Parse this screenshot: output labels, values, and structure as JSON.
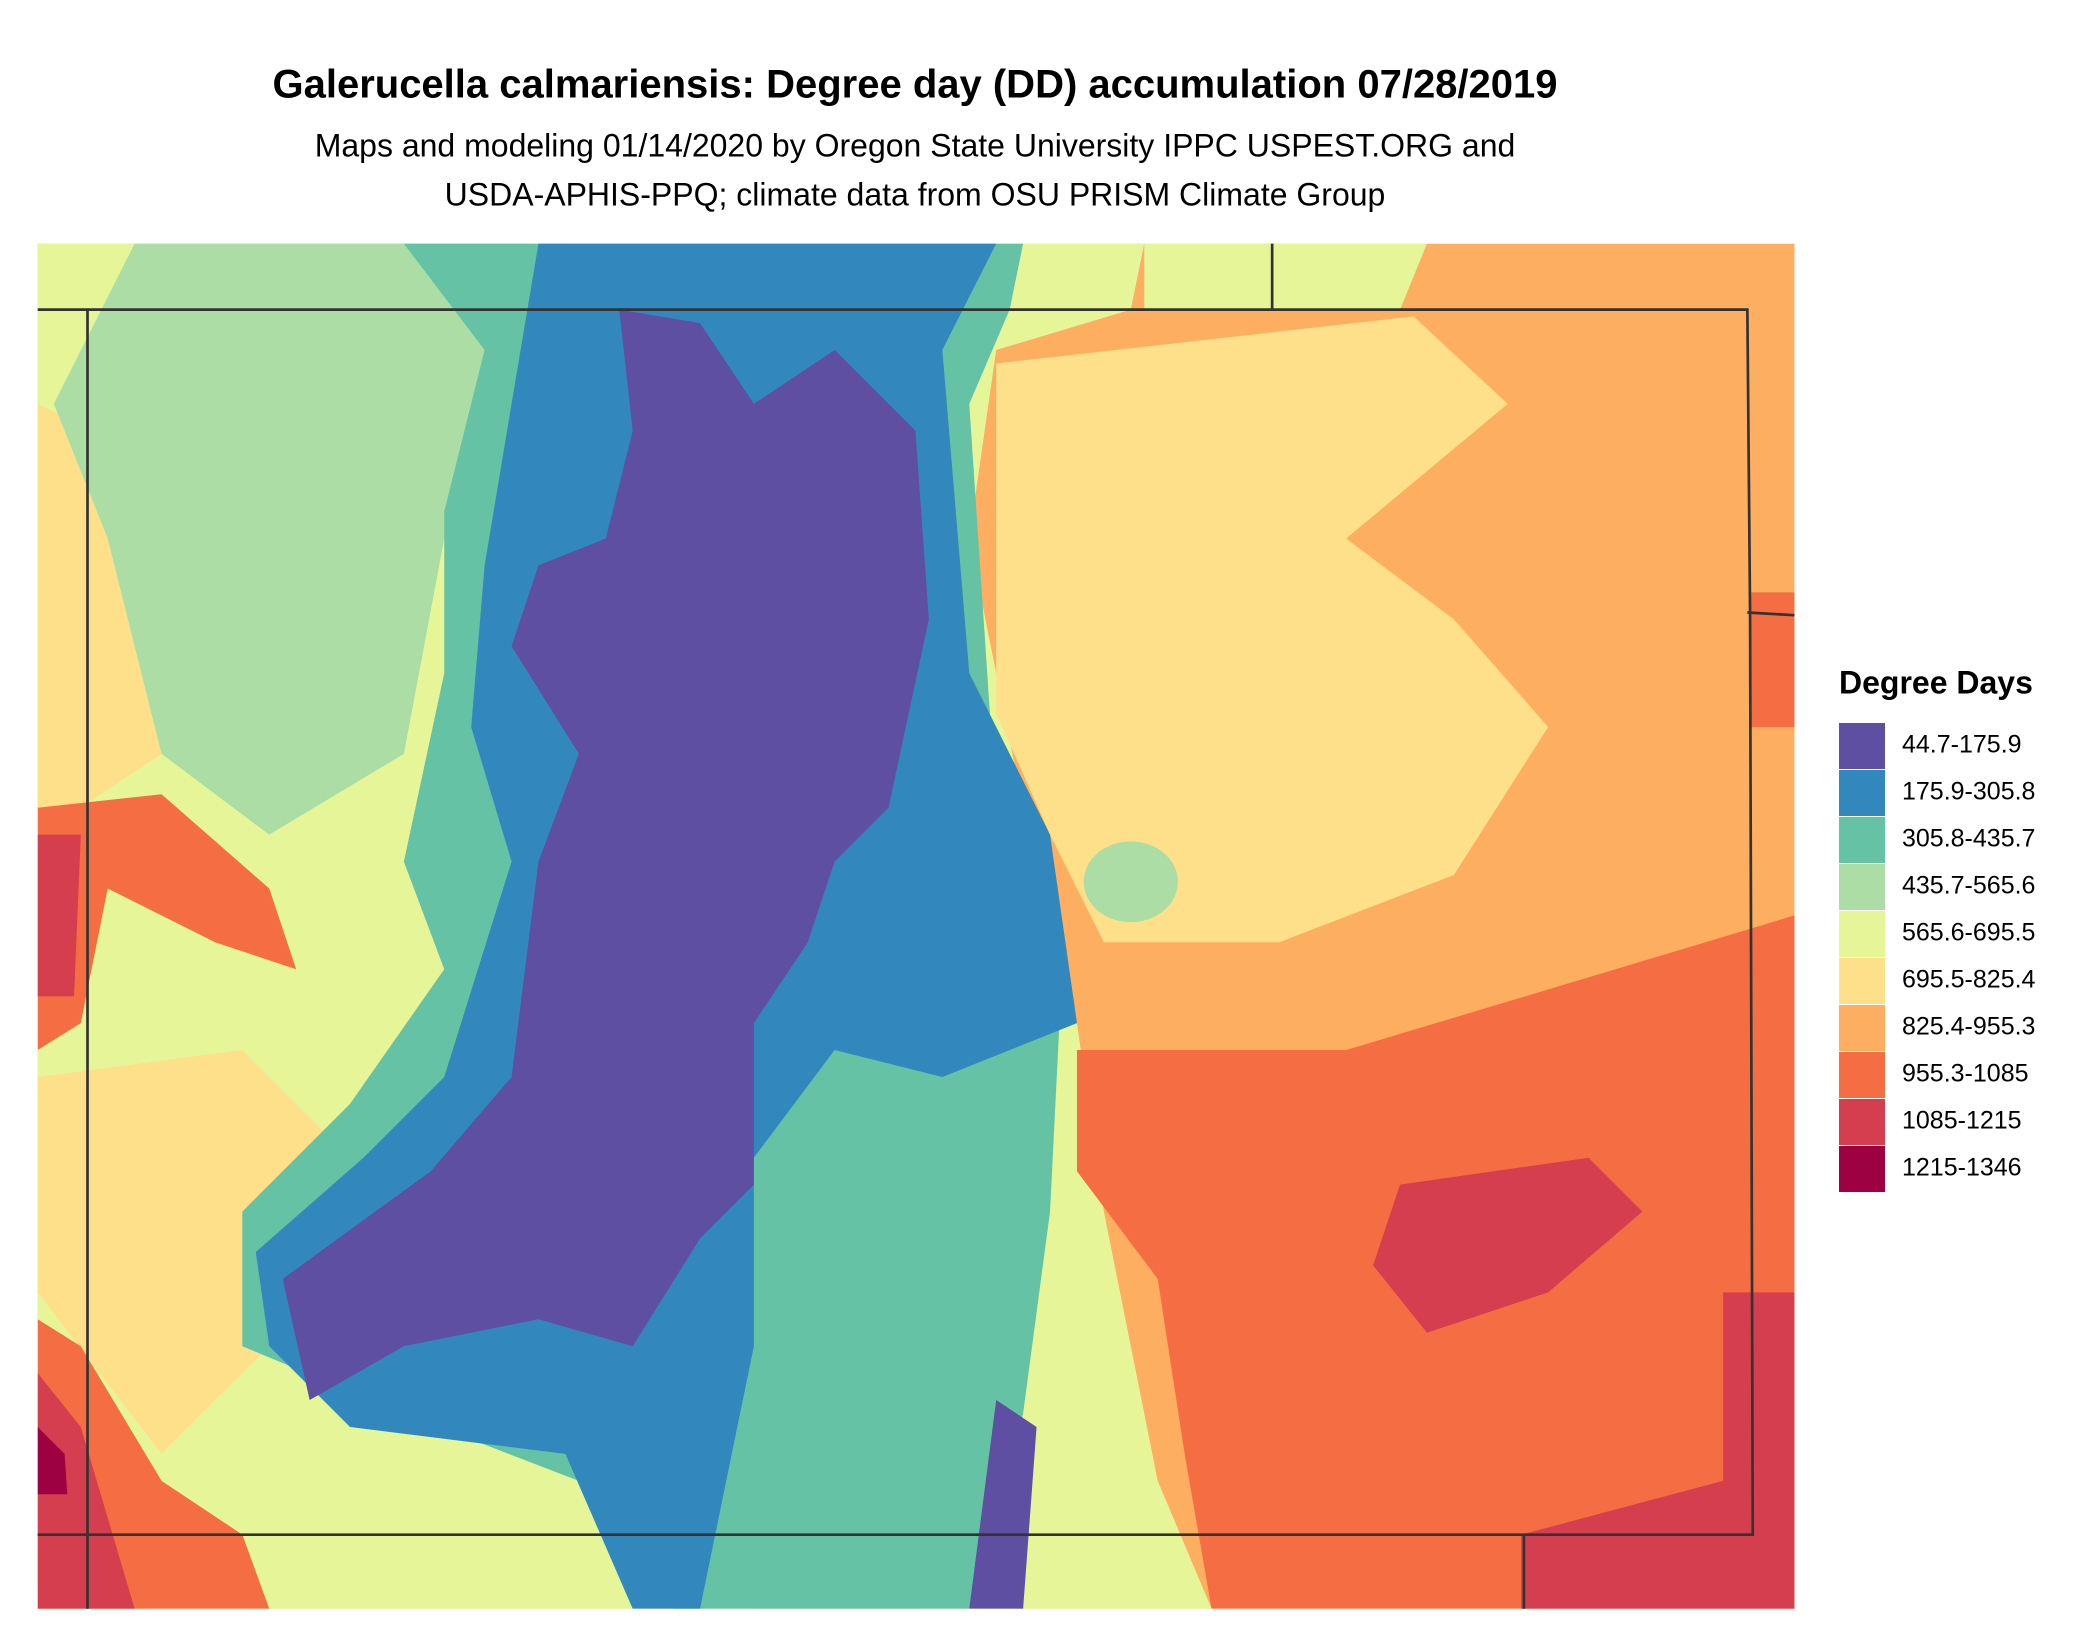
{
  "title": "Galerucella calmariensis: Degree day (DD) accumulation 07/28/2019",
  "subtitle": [
    "Maps and modeling 01/14/2020 by Oregon State University IPPC USPEST.ORG and",
    "USDA-APHIS-PPQ; climate data from OSU PRISM Climate Group"
  ],
  "legend": {
    "title": "Degree Days",
    "items": [
      {
        "label": "44.7-175.9",
        "color": "#5e4fa2"
      },
      {
        "label": "175.9-305.8",
        "color": "#3288bd"
      },
      {
        "label": "305.8-435.7",
        "color": "#66c2a5"
      },
      {
        "label": "435.7-565.6",
        "color": "#abdda4"
      },
      {
        "label": "565.6-695.5",
        "color": "#e6f598"
      },
      {
        "label": "695.5-825.4",
        "color": "#fee08b"
      },
      {
        "label": "825.4-955.3",
        "color": "#fdae61"
      },
      {
        "label": "955.3-1085",
        "color": "#f46d43"
      },
      {
        "label": "1085-1215",
        "color": "#d53e4f"
      },
      {
        "label": "1215-1346",
        "color": "#9e0142"
      }
    ]
  }
}
